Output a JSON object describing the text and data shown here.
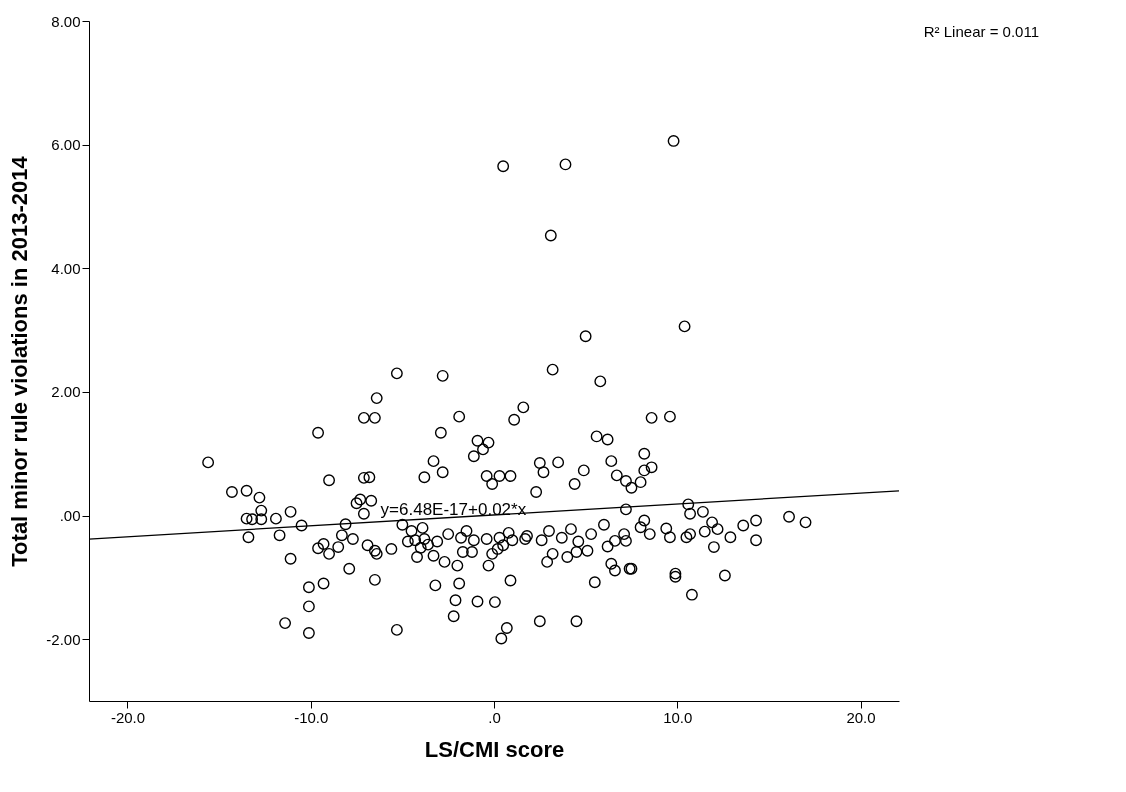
{
  "chart_data": {
    "type": "scatter",
    "xlabel": "LS/CMI score",
    "ylabel": "Total minor rule violations in 2013-2014",
    "xlim": [
      -22.1,
      22.1
    ],
    "ylim": [
      -3,
      8
    ],
    "xticks": [
      {
        "value": -20,
        "label": "-20.0"
      },
      {
        "value": -10,
        "label": "-10.0"
      },
      {
        "value": 0,
        "label": ".0"
      },
      {
        "value": 10,
        "label": "10.0"
      },
      {
        "value": 20,
        "label": "20.0"
      }
    ],
    "yticks": [
      {
        "value": -2,
        "label": "-2.00"
      },
      {
        "value": 0,
        "label": ".00"
      },
      {
        "value": 2,
        "label": "2.00"
      },
      {
        "value": 4,
        "label": "4.00"
      },
      {
        "value": 6,
        "label": "6.00"
      },
      {
        "value": 8,
        "label": "8.00"
      }
    ],
    "annotations": [
      "R² Linear = 0.011",
      "y=6.48E-17+0.02*x"
    ],
    "series": [
      {
        "marker": "circle",
        "color": "#000000",
        "x": [
          -15.6,
          -14.3,
          -13.5,
          -13.5,
          -13.4,
          -13.2,
          -12.8,
          -12.7,
          -12.7,
          -11.9,
          -11.7,
          -11.4,
          -11.1,
          -11.1,
          -10.5,
          -10.1,
          -10.1,
          -10.1,
          -9.6,
          -9.6,
          -9.3,
          -9.3,
          -9.0,
          -8.5,
          -8.1,
          -7.9,
          -7.7,
          -7.3,
          -7.1,
          -7.1,
          -7.1,
          -6.9,
          -6.8,
          -6.7,
          -6.5,
          -6.5,
          -6.4,
          -6.5,
          -6.4,
          -5.3,
          -5.6,
          -5.3,
          -4.3,
          -3.8,
          -3.1,
          -1.8,
          -1.1,
          -0.4,
          0.3,
          1.0,
          1.7,
          2.6,
          3.7,
          4.6,
          5.3,
          -4.2,
          -3.3,
          -2.7,
          -2.0,
          -1.7,
          -1.2,
          -0.3,
          -0.1,
          0.2,
          2.9,
          3.2,
          4.0,
          4.5,
          5.1,
          -3.2,
          -1.9,
          0.9,
          -2.1,
          -0.9,
          0.05,
          -2.2,
          2.5,
          4.5,
          0.7,
          0.4,
          5.5,
          6.4,
          6.6,
          7.4,
          6.6,
          7.2,
          7.1,
          -2.8,
          3.2,
          5.8,
          -1.9,
          1.6,
          1.1,
          -2.9,
          -0.9,
          -0.3,
          -0.6,
          -1.1,
          5.6,
          6.2,
          -3.3,
          -2.8,
          -3.8,
          -0.4,
          0.3,
          0.9,
          -0.1,
          2.5,
          2.7,
          3.5,
          4.9,
          4.4,
          2.3,
          6.4,
          6.7,
          7.2,
          7.5,
          7.2,
          9.8,
          0.5,
          3.9,
          3.1,
          10.4,
          5.0,
          8.6,
          9.6,
          8.2,
          8.2,
          8.6,
          8.0,
          10.6,
          10.7,
          11.4,
          8.2,
          8.0,
          8.5,
          9.4,
          9.6,
          10.5,
          10.7,
          11.5,
          11.9,
          12.2,
          12.0,
          12.9,
          13.6,
          14.3,
          14.3,
          16.1,
          17.0,
          7.5,
          9.9,
          9.9,
          12.6,
          10.8,
          -4.5,
          -3.9,
          -2.5,
          -1.5,
          0.8,
          1.8,
          3.0,
          4.2,
          -5.0,
          -4.0,
          -3.6,
          0.5,
          6.0,
          6.2,
          -7.5,
          -8.3,
          -9.0,
          -4.7
        ],
        "values": [
          0.86,
          0.38,
          0.4,
          -0.05,
          -0.35,
          -0.06,
          0.29,
          0.08,
          -0.06,
          -0.05,
          -0.32,
          -1.74,
          0.06,
          -0.7,
          -0.16,
          -1.16,
          -1.47,
          -1.9,
          1.34,
          -0.53,
          -0.46,
          -1.1,
          0.57,
          -0.51,
          -0.14,
          -0.86,
          -0.38,
          0.26,
          0.03,
          1.58,
          0.61,
          -0.48,
          0.62,
          0.24,
          -0.57,
          1.58,
          -0.62,
          -1.04,
          1.9,
          2.3,
          -0.54,
          -1.85,
          -0.4,
          -0.38,
          -0.42,
          -0.36,
          -0.4,
          -0.38,
          -0.36,
          -0.4,
          -0.38,
          -0.4,
          -0.36,
          -0.42,
          -0.3,
          -0.67,
          -0.65,
          -0.75,
          -0.81,
          -0.59,
          -0.59,
          -0.81,
          -0.62,
          -0.54,
          -0.75,
          -0.62,
          -0.67,
          -0.59,
          -0.57,
          -1.13,
          -1.1,
          -1.05,
          -1.37,
          -1.39,
          -1.4,
          -1.63,
          -1.71,
          -1.71,
          -1.82,
          -1.99,
          -1.08,
          -0.78,
          -0.89,
          -0.86,
          -0.41,
          -0.41,
          -0.3,
          2.26,
          2.36,
          2.17,
          1.6,
          1.75,
          1.55,
          1.34,
          1.21,
          1.18,
          1.07,
          0.96,
          1.28,
          1.23,
          0.88,
          0.7,
          0.62,
          0.64,
          0.64,
          0.64,
          0.51,
          0.85,
          0.7,
          0.86,
          0.73,
          0.51,
          0.38,
          0.88,
          0.65,
          0.56,
          0.45,
          0.1,
          6.06,
          5.65,
          5.68,
          4.53,
          3.06,
          2.9,
          1.58,
          1.6,
          1.0,
          0.73,
          0.78,
          0.54,
          0.18,
          0.03,
          0.06,
          -0.08,
          -0.19,
          -0.3,
          -0.21,
          -0.35,
          -0.35,
          -0.3,
          -0.26,
          -0.11,
          -0.22,
          -0.51,
          -0.35,
          -0.16,
          -0.08,
          -0.4,
          -0.02,
          -0.11,
          -0.86,
          -0.94,
          -0.99,
          -0.97,
          -1.28,
          -0.25,
          -0.2,
          -0.3,
          -0.25,
          -0.28,
          -0.33,
          -0.25,
          -0.22,
          -0.15,
          -0.52,
          -0.47,
          -0.48,
          -0.15,
          -0.5,
          0.2,
          -0.32,
          -0.62,
          -0.42
        ]
      },
      {
        "type": "line",
        "color": "#000000",
        "x": [
          -22.1,
          22.1
        ],
        "values": [
          -0.38,
          0.4
        ]
      }
    ]
  }
}
